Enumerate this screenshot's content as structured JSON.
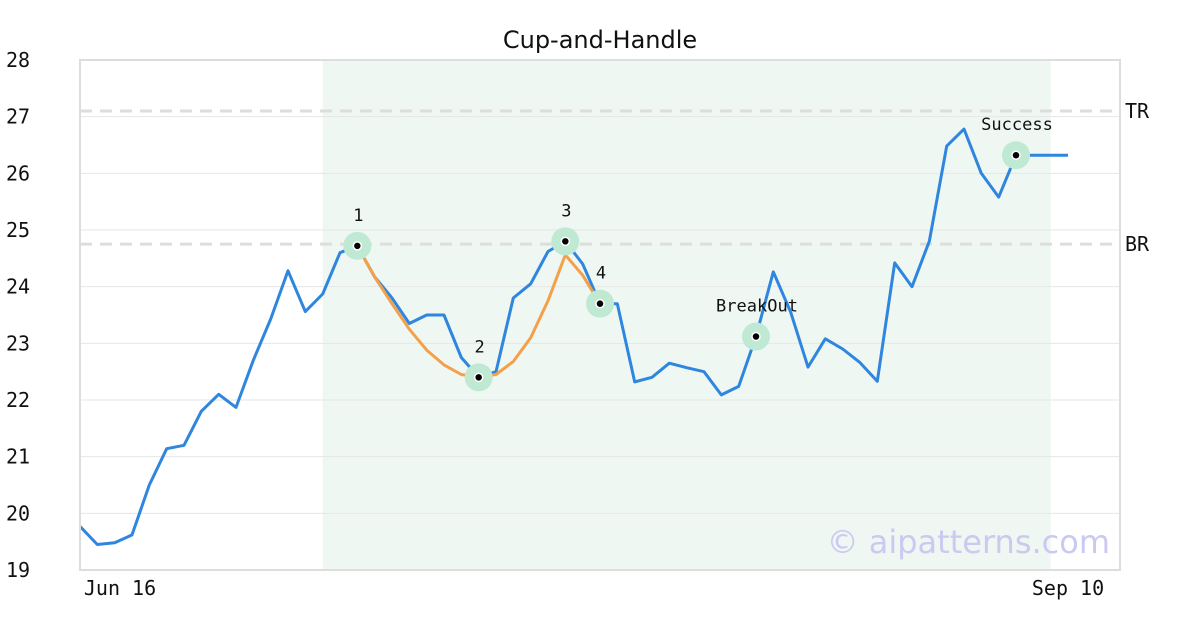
{
  "chart_data": {
    "type": "line",
    "title": "Cup-and-Handle",
    "watermark": "© aipatterns.com",
    "ylim": [
      19,
      28
    ],
    "yticks": [
      19,
      20,
      21,
      22,
      23,
      24,
      25,
      26,
      27,
      28
    ],
    "x_tick_labels": [
      {
        "index": 0,
        "label": "Jun 16"
      },
      {
        "index": 57,
        "label": "Sep 10"
      }
    ],
    "grid": true,
    "series": [
      {
        "color": "#2e86de",
        "x": [
          0,
          1,
          2,
          3,
          4,
          5,
          6,
          7,
          8,
          9,
          10,
          11,
          12,
          13,
          14,
          15,
          16,
          17,
          18,
          19,
          20,
          21,
          22,
          23,
          24,
          25,
          26,
          27,
          28,
          29,
          30,
          31,
          32,
          33,
          34,
          35,
          36,
          37,
          38,
          39,
          40,
          41,
          42,
          43,
          44,
          45,
          46,
          47,
          48,
          49,
          50,
          51,
          52,
          53,
          54,
          55,
          56,
          57
        ],
        "values": [
          19.77,
          19.45,
          19.48,
          19.62,
          20.5,
          21.14,
          21.2,
          21.8,
          22.1,
          21.87,
          22.7,
          23.43,
          24.28,
          23.56,
          23.87,
          24.6,
          24.72,
          24.17,
          23.8,
          23.35,
          23.5,
          23.5,
          22.75,
          22.4,
          22.5,
          23.8,
          24.05,
          24.62,
          24.8,
          24.4,
          23.7,
          23.7,
          22.32,
          22.4,
          22.65,
          22.57,
          22.5,
          22.09,
          22.24,
          23.12,
          24.26,
          23.55,
          22.58,
          23.08,
          22.9,
          22.66,
          22.33,
          24.42,
          24.0,
          24.8,
          26.48,
          26.78,
          26.0,
          25.58,
          26.32,
          26.32,
          26.32,
          26.32
        ]
      },
      {
        "color": "#f4a04a",
        "x": [
          16,
          17,
          18,
          19,
          20,
          21,
          22,
          23,
          24,
          25,
          26,
          27,
          28,
          29,
          30
        ],
        "values": [
          24.72,
          24.17,
          23.7,
          23.25,
          22.88,
          22.62,
          22.45,
          22.4,
          22.45,
          22.68,
          23.1,
          23.75,
          24.56,
          24.2,
          23.7
        ]
      }
    ],
    "pattern_band": {
      "from_index": 14,
      "to_index": 56,
      "color": "#eff7f3"
    },
    "levels": [
      {
        "label": "TR",
        "value": 27.1
      },
      {
        "label": "BR",
        "value": 24.75
      }
    ],
    "points": [
      {
        "label": "1",
        "index": 16,
        "value": 24.72
      },
      {
        "label": "2",
        "index": 23,
        "value": 22.4
      },
      {
        "label": "3",
        "index": 28,
        "value": 24.8
      },
      {
        "label": "4",
        "index": 30,
        "value": 23.7
      },
      {
        "label": "BreakOut",
        "index": 39,
        "value": 23.12
      },
      {
        "label": "Success",
        "index": 54,
        "value": 26.32
      }
    ],
    "colors": {
      "marker_halo": "#bfe9d3",
      "grid": "#e6e6e6",
      "frame": "#dddddd",
      "level_line": "#dddddd"
    }
  }
}
